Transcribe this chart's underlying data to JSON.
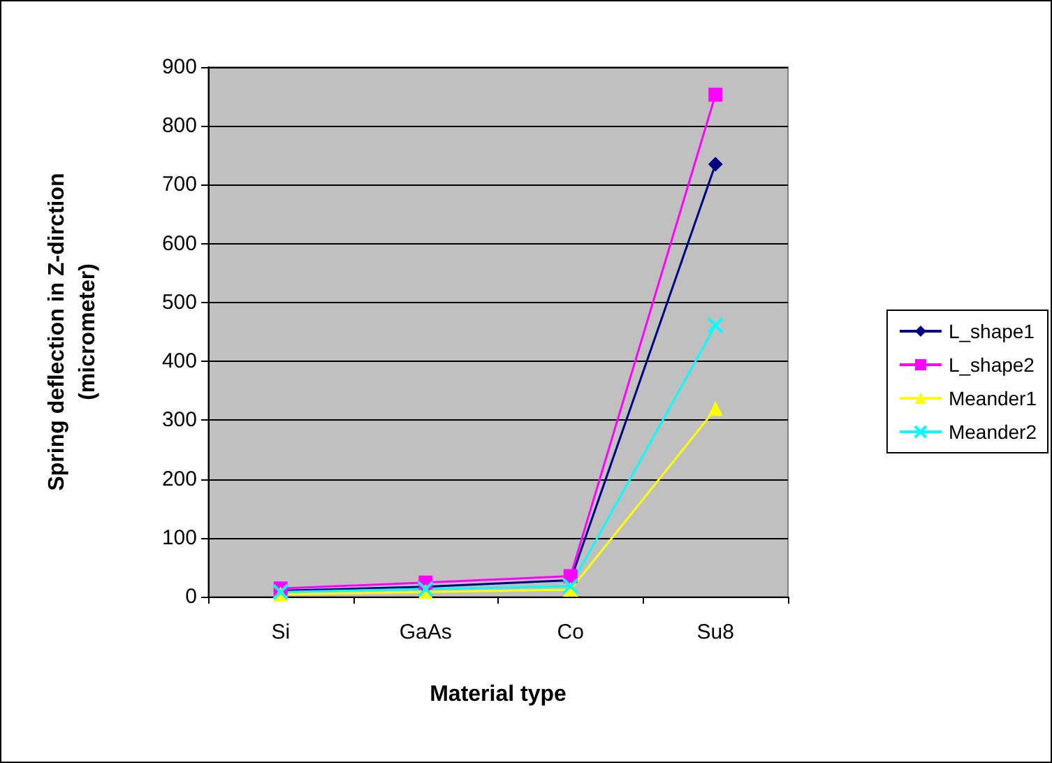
{
  "chart_data": {
    "type": "line",
    "xlabel": "Material type",
    "ylabel": "Spring deflection in Z-dirction\n(micrometer)",
    "categories": [
      "Si",
      "GaAs",
      "Co",
      "Su8"
    ],
    "series": [
      {
        "name": "L_shape1",
        "color": "#000080",
        "marker": "diamond",
        "values": [
          10,
          17,
          28,
          735
        ]
      },
      {
        "name": "L_shape2",
        "color": "#ff00ff",
        "marker": "square",
        "values": [
          14,
          24,
          35,
          853
        ]
      },
      {
        "name": "Meander1",
        "color": "#ffff00",
        "marker": "triangle",
        "values": [
          4,
          8,
          12,
          319
        ]
      },
      {
        "name": "Meander2",
        "color": "#00ffff",
        "marker": "cross",
        "values": [
          8,
          13,
          18,
          461
        ]
      }
    ],
    "ylim": [
      0,
      900
    ],
    "yticks": [
      0,
      100,
      200,
      300,
      400,
      500,
      600,
      700,
      800,
      900
    ],
    "grid": "y",
    "legend": "right"
  }
}
